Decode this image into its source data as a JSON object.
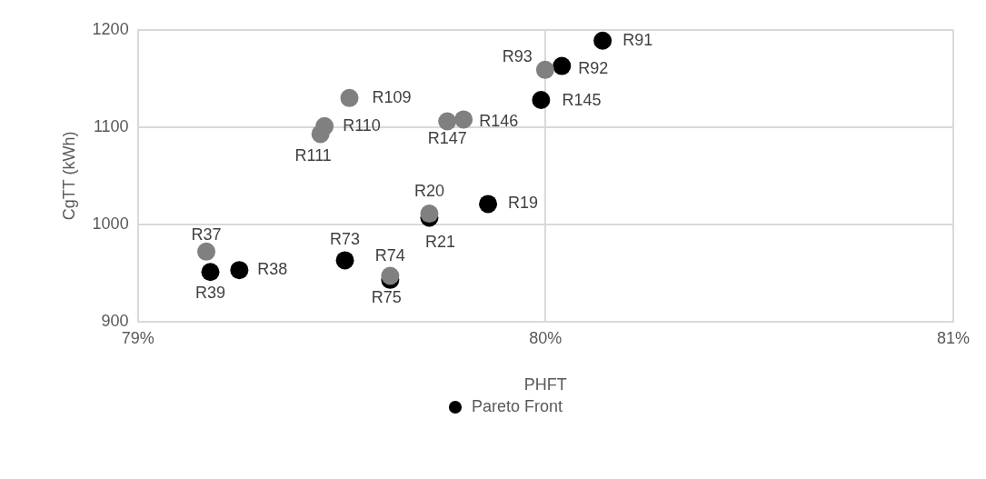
{
  "chart_data": {
    "type": "scatter",
    "xlabel": "PHFT",
    "ylabel": "CgTT (kWh)",
    "x": [
      79.178,
      79.249,
      79.508,
      79.619,
      79.715,
      79.859,
      79.989,
      80.04,
      80.14
    ],
    "series": [
      {
        "name": "Pareto Front",
        "color": "#000000",
        "values": [
          951,
          953,
          963,
          943,
          1007,
          1021,
          1128,
          1163,
          1189
        ]
      },
      {
        "color": "#808080",
        "x": [
          79.168,
          79.448,
          79.458,
          79.519,
          79.619,
          79.715,
          79.759,
          79.799,
          79.999
        ],
        "values": [
          972,
          1093,
          1101,
          1130,
          947,
          1011,
          1106,
          1108,
          1159
        ]
      }
    ],
    "xlim": [
      79,
      81
    ],
    "xticks": [
      {
        "value": 79,
        "label": "79%"
      },
      {
        "value": 80,
        "label": "80%"
      },
      {
        "value": 81,
        "label": "81%"
      }
    ],
    "ylim": [
      900,
      1200
    ],
    "yticks": [
      900,
      1000,
      1100,
      1200
    ],
    "grid": true,
    "legend": "bottom",
    "marker": "circle",
    "annotations": [
      {
        "text": "R37",
        "x": 79.168,
        "y": 972
      },
      {
        "text": "R39",
        "x": 79.178,
        "y": 951
      },
      {
        "text": "R38",
        "x": 79.249,
        "y": 953
      },
      {
        "text": "R73",
        "x": 79.508,
        "y": 963
      },
      {
        "text": "R74",
        "x": 79.619,
        "y": 947
      },
      {
        "text": "R75",
        "x": 79.619,
        "y": 943
      },
      {
        "text": "R111",
        "x": 79.448,
        "y": 1093
      },
      {
        "text": "R110",
        "x": 79.458,
        "y": 1101
      },
      {
        "text": "R109",
        "x": 79.519,
        "y": 1130
      },
      {
        "text": "R147",
        "x": 79.759,
        "y": 1106
      },
      {
        "text": "R146",
        "x": 79.799,
        "y": 1108
      },
      {
        "text": "R20",
        "x": 79.715,
        "y": 1011
      },
      {
        "text": "R21",
        "x": 79.715,
        "y": 1007
      },
      {
        "text": "R19",
        "x": 79.859,
        "y": 1021
      },
      {
        "text": "R145",
        "x": 79.989,
        "y": 1128
      },
      {
        "text": "R93",
        "x": 79.999,
        "y": 1159
      },
      {
        "text": "R92",
        "x": 80.04,
        "y": 1163
      },
      {
        "text": "R91",
        "x": 80.14,
        "y": 1189
      }
    ]
  }
}
